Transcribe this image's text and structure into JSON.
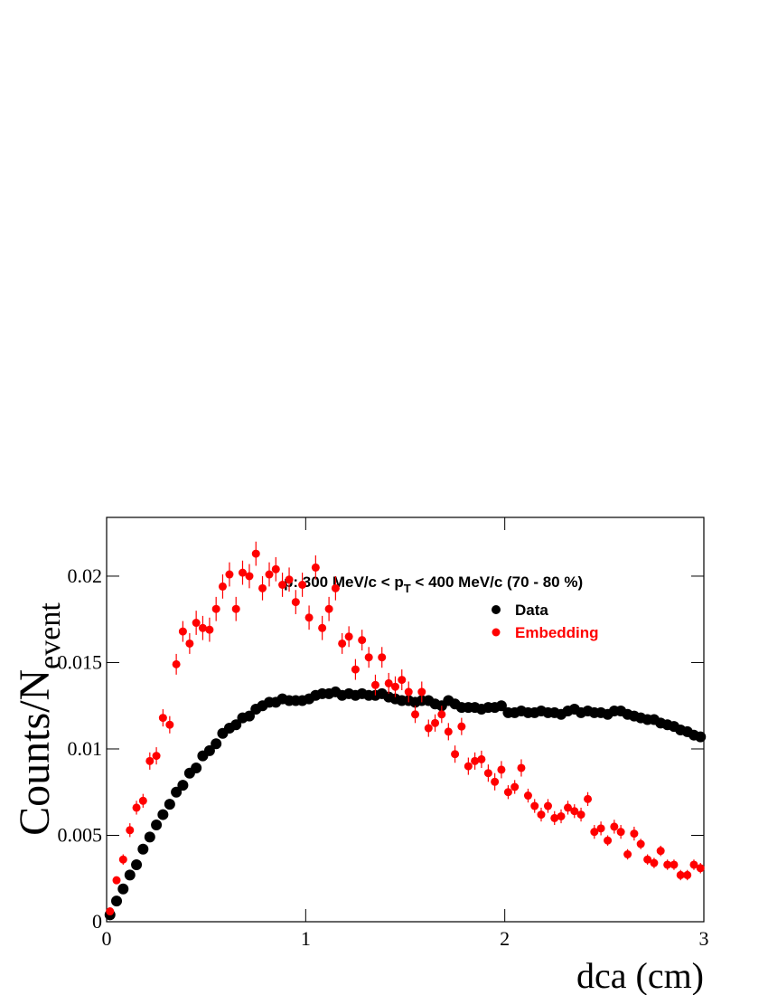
{
  "chart_data": {
    "type": "scatter",
    "y_label": "Counts/N",
    "y_label_sub": "event",
    "x_label": "dca (cm)",
    "annotation": {
      "text": "p: 300 MeV/c < p",
      "sub": "T",
      "tail": " < 400 MeV/c (70 - 80 %)"
    },
    "xlim": [
      0,
      3
    ],
    "xticks": [
      0,
      1,
      2,
      3
    ],
    "ylim": [
      0,
      0.0234
    ],
    "yticks": [
      0,
      0.005,
      0.01,
      0.015,
      0.02
    ],
    "x": [
      0.017,
      0.05,
      0.083,
      0.117,
      0.15,
      0.183,
      0.217,
      0.25,
      0.283,
      0.317,
      0.35,
      0.383,
      0.417,
      0.45,
      0.483,
      0.517,
      0.55,
      0.583,
      0.617,
      0.65,
      0.683,
      0.717,
      0.75,
      0.783,
      0.817,
      0.85,
      0.883,
      0.917,
      0.95,
      0.983,
      1.017,
      1.05,
      1.083,
      1.117,
      1.15,
      1.183,
      1.217,
      1.25,
      1.283,
      1.317,
      1.35,
      1.383,
      1.417,
      1.45,
      1.483,
      1.517,
      1.55,
      1.583,
      1.617,
      1.65,
      1.683,
      1.717,
      1.75,
      1.783,
      1.817,
      1.85,
      1.883,
      1.917,
      1.95,
      1.983,
      2.017,
      2.05,
      2.083,
      2.117,
      2.15,
      2.183,
      2.217,
      2.25,
      2.283,
      2.317,
      2.35,
      2.383,
      2.417,
      2.45,
      2.483,
      2.517,
      2.55,
      2.583,
      2.617,
      2.65,
      2.683,
      2.717,
      2.75,
      2.783,
      2.817,
      2.85,
      2.883,
      2.917,
      2.95,
      2.983
    ],
    "series": [
      {
        "name": "Data",
        "color": "#000000",
        "values": [
          0.0004,
          0.0012,
          0.0019,
          0.0027,
          0.0033,
          0.0042,
          0.0049,
          0.0056,
          0.0062,
          0.0068,
          0.0075,
          0.0079,
          0.0086,
          0.0089,
          0.0096,
          0.0099,
          0.0103,
          0.0109,
          0.0112,
          0.0114,
          0.0118,
          0.0119,
          0.0123,
          0.0125,
          0.0127,
          0.0127,
          0.0129,
          0.0128,
          0.0128,
          0.0128,
          0.0129,
          0.0131,
          0.0132,
          0.0132,
          0.0133,
          0.0131,
          0.0132,
          0.0131,
          0.0132,
          0.0131,
          0.0131,
          0.0132,
          0.013,
          0.0129,
          0.0128,
          0.0128,
          0.0127,
          0.0128,
          0.0128,
          0.0126,
          0.0125,
          0.0128,
          0.0126,
          0.0124,
          0.0124,
          0.0124,
          0.0123,
          0.0124,
          0.0124,
          0.0125,
          0.0121,
          0.0121,
          0.0122,
          0.0121,
          0.0121,
          0.0122,
          0.0121,
          0.0121,
          0.012,
          0.0122,
          0.0123,
          0.0121,
          0.0122,
          0.0121,
          0.0121,
          0.012,
          0.0122,
          0.0122,
          0.012,
          0.0119,
          0.0118,
          0.0117,
          0.0117,
          0.0115,
          0.0114,
          0.0113,
          0.0111,
          0.011,
          0.0108,
          0.0107
        ]
      },
      {
        "name": "Embedding",
        "color": "#ff0000",
        "values": [
          0.0006,
          0.0024,
          0.0036,
          0.0053,
          0.0066,
          0.007,
          0.0093,
          0.0096,
          0.0118,
          0.0114,
          0.0149,
          0.0168,
          0.0161,
          0.0173,
          0.017,
          0.0169,
          0.0181,
          0.0194,
          0.0201,
          0.0181,
          0.0202,
          0.02,
          0.0213,
          0.0193,
          0.0201,
          0.0204,
          0.0195,
          0.0198,
          0.0185,
          0.0195,
          0.0176,
          0.0205,
          0.017,
          0.0181,
          0.0193,
          0.0161,
          0.0165,
          0.0146,
          0.0163,
          0.0153,
          0.0137,
          0.0153,
          0.0138,
          0.0136,
          0.014,
          0.0133,
          0.012,
          0.0133,
          0.0112,
          0.0115,
          0.012,
          0.011,
          0.0097,
          0.0113,
          0.009,
          0.0093,
          0.0094,
          0.0086,
          0.0081,
          0.0088,
          0.0075,
          0.0078,
          0.0089,
          0.0073,
          0.0067,
          0.0062,
          0.0067,
          0.006,
          0.0061,
          0.0066,
          0.0064,
          0.0062,
          0.0071,
          0.0052,
          0.0054,
          0.0047,
          0.0055,
          0.0052,
          0.0039,
          0.0051,
          0.0045,
          0.0036,
          0.0034,
          0.0041,
          0.0033,
          0.0033,
          0.0027,
          0.0027,
          0.0033,
          0.0031
        ],
        "errors": [
          0.0001,
          0.0002,
          0.0003,
          0.0004,
          0.0004,
          0.0004,
          0.0005,
          0.0005,
          0.0005,
          0.0005,
          0.0006,
          0.0006,
          0.0006,
          0.0007,
          0.0007,
          0.0007,
          0.0007,
          0.0007,
          0.0007,
          0.0007,
          0.0007,
          0.0007,
          0.0007,
          0.0007,
          0.0007,
          0.0007,
          0.0007,
          0.0007,
          0.0007,
          0.0007,
          0.0007,
          0.0007,
          0.0007,
          0.0007,
          0.0007,
          0.0006,
          0.0006,
          0.0006,
          0.0006,
          0.0006,
          0.0006,
          0.0006,
          0.0006,
          0.0006,
          0.0006,
          0.0006,
          0.0005,
          0.0006,
          0.0005,
          0.0005,
          0.0005,
          0.0005,
          0.0005,
          0.0005,
          0.0005,
          0.0005,
          0.0005,
          0.0005,
          0.0005,
          0.0005,
          0.0004,
          0.0004,
          0.0005,
          0.0004,
          0.0004,
          0.0004,
          0.0004,
          0.0004,
          0.0004,
          0.0004,
          0.0004,
          0.0004,
          0.0004,
          0.0004,
          0.0004,
          0.0003,
          0.0004,
          0.0004,
          0.0003,
          0.0004,
          0.0003,
          0.0003,
          0.0003,
          0.0003,
          0.0003,
          0.0003,
          0.0003,
          0.0003,
          0.0003,
          0.0003
        ]
      }
    ],
    "legend": "upper right"
  }
}
